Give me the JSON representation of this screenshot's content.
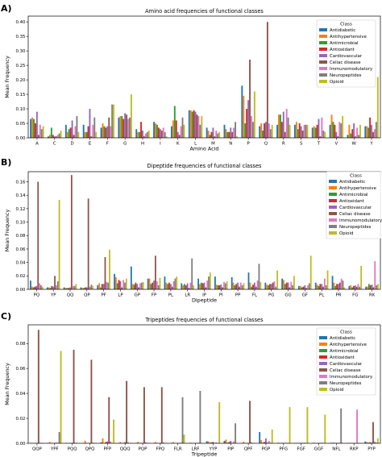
{
  "classes": [
    "Antidiabetic",
    "Antihypertensive",
    "Antimicrobial",
    "Antioxidant",
    "Cardiovascular",
    "Celiac disease",
    "Immunomodulatory",
    "Neuropeptides",
    "Opioid"
  ],
  "class_colors": [
    "#1f77b4",
    "#ff7f0e",
    "#2ca02c",
    "#d62728",
    "#9467bd",
    "#8c564b",
    "#e377c2",
    "#7f7f7f",
    "#bcbd22"
  ],
  "legend_title": "Class",
  "chart_data": [
    {
      "panel_label": "A)",
      "type": "bar",
      "title": "Amino acid frequencies of functional classes",
      "xlabel": "Amino Acid",
      "ylabel": "Mean Frequency",
      "ylim": [
        0,
        0.42
      ],
      "yticks": [
        0.0,
        0.05,
        0.1,
        0.15,
        0.2,
        0.25,
        0.3,
        0.35,
        0.4
      ],
      "ytick_labels": [
        "0.00",
        "0.05",
        "0.10",
        "0.15",
        "0.20",
        "0.25",
        "0.30",
        "0.35",
        "0.40"
      ],
      "categories": [
        "A",
        "C",
        "D",
        "E",
        "F",
        "G",
        "H",
        "I",
        "K",
        "L",
        "M",
        "N",
        "P",
        "Q",
        "R",
        "S",
        "T",
        "V",
        "W",
        "Y"
      ],
      "series": [
        {
          "name": "Antidiabetic",
          "values": [
            0.065,
            0.005,
            0.045,
            0.045,
            0.035,
            0.07,
            0.03,
            0.055,
            0.04,
            0.095,
            0.035,
            0.045,
            0.18,
            0.04,
            0.045,
            0.045,
            0.035,
            0.045,
            0.01,
            0.04
          ]
        },
        {
          "name": "Antihypertensive",
          "values": [
            0.07,
            0.01,
            0.02,
            0.02,
            0.05,
            0.075,
            0.02,
            0.05,
            0.06,
            0.095,
            0.025,
            0.03,
            0.145,
            0.05,
            0.08,
            0.055,
            0.04,
            0.08,
            0.045,
            0.04
          ]
        },
        {
          "name": "Antimicrobial",
          "values": [
            0.065,
            0.035,
            0.03,
            0.02,
            0.04,
            0.075,
            0.02,
            0.045,
            0.11,
            0.09,
            0.01,
            0.02,
            0.05,
            0.025,
            0.08,
            0.03,
            0.035,
            0.055,
            0.015,
            0.035
          ]
        },
        {
          "name": "Antioxidant",
          "values": [
            0.05,
            0.01,
            0.035,
            0.04,
            0.035,
            0.065,
            0.055,
            0.035,
            0.06,
            0.095,
            0.02,
            0.02,
            0.1,
            0.05,
            0.055,
            0.05,
            0.045,
            0.045,
            0.03,
            0.07
          ]
        },
        {
          "name": "Cardiovascular",
          "values": [
            0.09,
            0.005,
            0.06,
            0.1,
            0.04,
            0.085,
            0.025,
            0.03,
            0.02,
            0.09,
            0.035,
            0.035,
            0.13,
            0.055,
            0.09,
            0.04,
            0.065,
            0.02,
            0.05,
            0.045
          ]
        },
        {
          "name": "Celiac disease",
          "values": [
            0.01,
            0.005,
            0.01,
            0.005,
            0.07,
            0.08,
            0.005,
            0.025,
            0.01,
            0.08,
            0.005,
            0.02,
            0.27,
            0.4,
            0.02,
            0.025,
            0.005,
            0.005,
            0.005,
            0.02
          ]
        },
        {
          "name": "Immunomodulatory",
          "values": [
            0.045,
            0.01,
            0.04,
            0.045,
            0.04,
            0.065,
            0.015,
            0.035,
            0.04,
            0.075,
            0.025,
            0.035,
            0.075,
            0.05,
            0.1,
            0.045,
            0.07,
            0.055,
            0.035,
            0.03
          ]
        },
        {
          "name": "Neuropeptides",
          "values": [
            0.03,
            0.015,
            0.075,
            0.07,
            0.115,
            0.07,
            0.02,
            0.02,
            0.07,
            0.045,
            0.015,
            0.055,
            0.055,
            0.03,
            0.07,
            0.045,
            0.025,
            0.05,
            0.01,
            0.055
          ]
        },
        {
          "name": "Opioid",
          "values": [
            0.04,
            0.025,
            0.02,
            0.02,
            0.115,
            0.15,
            0.025,
            0.005,
            0.045,
            0.075,
            0.02,
            0.005,
            0.16,
            0.045,
            0.045,
            0.045,
            0.02,
            0.075,
            0.045,
            0.21
          ]
        }
      ]
    },
    {
      "panel_label": "B)",
      "type": "bar",
      "title": "Dipeptide frequencies of functional classes",
      "xlabel": "Dipeptide",
      "ylabel": "Mean Frequency",
      "ylim": [
        0,
        0.175
      ],
      "yticks": [
        0.0,
        0.02,
        0.04,
        0.06,
        0.08,
        0.1,
        0.12,
        0.14,
        0.16
      ],
      "ytick_labels": [
        "0.00",
        "0.02",
        "0.04",
        "0.06",
        "0.08",
        "0.10",
        "0.12",
        "0.14",
        "0.16"
      ],
      "categories": [
        "PQ",
        "YP",
        "QQ",
        "QP",
        "PF",
        "LP",
        "GP",
        "FP",
        "PL",
        "LR",
        "IP",
        "PI",
        "PP",
        "FL",
        "PG",
        "GG",
        "GF",
        "PL",
        "PR",
        "FG",
        "RK"
      ],
      "series": [
        {
          "name": "Antidiabetic",
          "values": [
            0.013,
            0.003,
            0.003,
            0.003,
            0.006,
            0.023,
            0.034,
            0.016,
            0.019,
            0.009,
            0.016,
            0.019,
            0.018,
            0.025,
            0.01,
            0.016,
            0.005,
            0.01,
            0.02,
            0.005,
            0.004
          ]
        },
        {
          "name": "Antihypertensive",
          "values": [
            0.004,
            0.003,
            0.002,
            0.002,
            0.009,
            0.018,
            0.008,
            0.016,
            0.01,
            0.006,
            0.008,
            0.007,
            0.01,
            0.01,
            0.007,
            0.014,
            0.005,
            0.007,
            0.01,
            0.006,
            0.004
          ]
        },
        {
          "name": "Antimicrobial",
          "values": [
            0.003,
            0.002,
            0.002,
            0.002,
            0.003,
            0.009,
            0.007,
            0.008,
            0.008,
            0.008,
            0.01,
            0.006,
            0.006,
            0.004,
            0.006,
            0.008,
            0.003,
            0.005,
            0.005,
            0.003,
            0.008
          ]
        },
        {
          "name": "Antioxidant",
          "values": [
            0.004,
            0.005,
            0.002,
            0.003,
            0.008,
            0.014,
            0.01,
            0.01,
            0.01,
            0.006,
            0.009,
            0.006,
            0.008,
            0.007,
            0.008,
            0.01,
            0.004,
            0.008,
            0.008,
            0.005,
            0.006
          ]
        },
        {
          "name": "Cardiovascular",
          "values": [
            0.005,
            0.004,
            0.003,
            0.003,
            0.008,
            0.012,
            0.008,
            0.013,
            0.008,
            0.009,
            0.01,
            0.007,
            0.01,
            0.01,
            0.008,
            0.01,
            0.006,
            0.008,
            0.008,
            0.006,
            0.007
          ]
        },
        {
          "name": "Celiac disease",
          "values": [
            0.16,
            0.02,
            0.17,
            0.135,
            0.048,
            0.003,
            0.003,
            0.05,
            0.004,
            0.002,
            0.003,
            0.003,
            0.004,
            0.004,
            0.01,
            0.003,
            0.002,
            0.004,
            0.01,
            0.004,
            0.003
          ]
        },
        {
          "name": "Immunomodulatory",
          "values": [
            0.009,
            0.006,
            0.005,
            0.004,
            0.011,
            0.014,
            0.009,
            0.012,
            0.012,
            0.01,
            0.013,
            0.011,
            0.01,
            0.013,
            0.012,
            0.011,
            0.006,
            0.016,
            0.016,
            0.008,
            0.042
          ]
        },
        {
          "name": "Neuropeptides",
          "values": [
            0.006,
            0.012,
            0.005,
            0.007,
            0.01,
            0.01,
            0.01,
            0.006,
            0.016,
            0.046,
            0.019,
            0.009,
            0.006,
            0.038,
            0.004,
            0.006,
            0.009,
            0.006,
            0.013,
            0.004,
            0.006
          ]
        },
        {
          "name": "Opioid",
          "values": [
            0.004,
            0.133,
            0.008,
            0.005,
            0.059,
            0.016,
            0.011,
            0.017,
            0.019,
            0.006,
            0.025,
            0.012,
            0.009,
            0.011,
            0.028,
            0.02,
            0.05,
            0.028,
            0.003,
            0.035,
            0.008
          ]
        }
      ]
    },
    {
      "panel_label": "C)",
      "type": "bar",
      "title": "Tripeptides frequencies of functional classes",
      "xlabel": "Tripeptide",
      "ylabel": "Mean Frequency",
      "ylim": [
        0,
        0.095
      ],
      "yticks": [
        0.0,
        0.02,
        0.04,
        0.06,
        0.08
      ],
      "ytick_labels": [
        "0.00",
        "0.02",
        "0.04",
        "0.06",
        "0.08"
      ],
      "categories": [
        "QQP",
        "YPF",
        "PQQ",
        "QPQ",
        "PFP",
        "QQQ",
        "PQP",
        "FPQ",
        "FLR",
        "LRF",
        "YYP",
        "PIP",
        "QPF",
        "PGP",
        "PFG",
        "FGF",
        "GGF",
        "NFL",
        "RKP",
        "PYP"
      ],
      "series": [
        {
          "name": "Antidiabetic",
          "values": [
            0.0003,
            0.0003,
            0.0003,
            0.0003,
            0.0007,
            0.0003,
            0.0003,
            0.0003,
            0.0003,
            0.0003,
            0.0017,
            0.002,
            0.0003,
            0.009,
            0.0003,
            0.0003,
            0.0003,
            0.0003,
            0.0003,
            0.0015
          ]
        },
        {
          "name": "Antihypertensive",
          "values": [
            0.0003,
            0.001,
            0.0003,
            0.002,
            0.004,
            0.001,
            0.0012,
            0.001,
            0.001,
            0.0005,
            0.0015,
            0.003,
            0.0013,
            0.0025,
            0.0005,
            0.0003,
            0.0005,
            0.0005,
            0.0003,
            0.001
          ]
        },
        {
          "name": "Antimicrobial",
          "values": [
            0.0002,
            0.0002,
            0.0002,
            0.0002,
            0.0002,
            0.0002,
            0.0002,
            0.0002,
            0.0002,
            0.0002,
            0.0005,
            0.0005,
            0.0002,
            0.0005,
            0.0002,
            0.0002,
            0.0002,
            0.0005,
            0.0002,
            0.0005
          ]
        },
        {
          "name": "Antioxidant",
          "values": [
            0.0003,
            0.0003,
            0.0003,
            0.0003,
            0.001,
            0.0003,
            0.0003,
            0.0003,
            0.0003,
            0.0003,
            0.0007,
            0.001,
            0.0003,
            0.001,
            0.0003,
            0.0003,
            0.0003,
            0.0003,
            0.0003,
            0.0008
          ]
        },
        {
          "name": "Cardiovascular",
          "values": [
            0.0003,
            0.0003,
            0.0003,
            0.0003,
            0.0015,
            0.001,
            0.0003,
            0.0003,
            0.0003,
            0.0003,
            0.0012,
            0.002,
            0.0003,
            0.004,
            0.0003,
            0.0003,
            0.0003,
            0.0003,
            0.0003,
            0.0005
          ]
        },
        {
          "name": "Celiac disease",
          "values": [
            0.091,
            0.0005,
            0.075,
            0.067,
            0.037,
            0.05,
            0.045,
            0.045,
            0.0003,
            0.0003,
            0.0003,
            0.0003,
            0.034,
            0.0005,
            0.0003,
            0.0003,
            0.0003,
            0.0003,
            0.0003,
            0.017
          ]
        },
        {
          "name": "Immunomodulatory",
          "values": [
            0.0005,
            0.0005,
            0.0005,
            0.0005,
            0.0015,
            0.0008,
            0.0008,
            0.0008,
            0.0005,
            0.0005,
            0.0008,
            0.0015,
            0.0008,
            0.002,
            0.0005,
            0.0005,
            0.0005,
            0.0005,
            0.027,
            0.0015
          ]
        },
        {
          "name": "Neuropeptides",
          "values": [
            0.0003,
            0.009,
            0.0003,
            0.0003,
            0.0003,
            0.0003,
            0.0003,
            0.0003,
            0.037,
            0.042,
            0.0003,
            0.016,
            0.0003,
            0.0005,
            0.0003,
            0.0003,
            0.0003,
            0.028,
            0.0003,
            0.0005
          ]
        },
        {
          "name": "Opioid",
          "values": [
            0.0003,
            0.074,
            0.0003,
            0.0003,
            0.019,
            0.0003,
            0.0003,
            0.0003,
            0.007,
            0.0003,
            0.033,
            0.0003,
            0.0003,
            0.011,
            0.029,
            0.029,
            0.023,
            0.0003,
            0.0003,
            0.004
          ]
        }
      ]
    }
  ]
}
